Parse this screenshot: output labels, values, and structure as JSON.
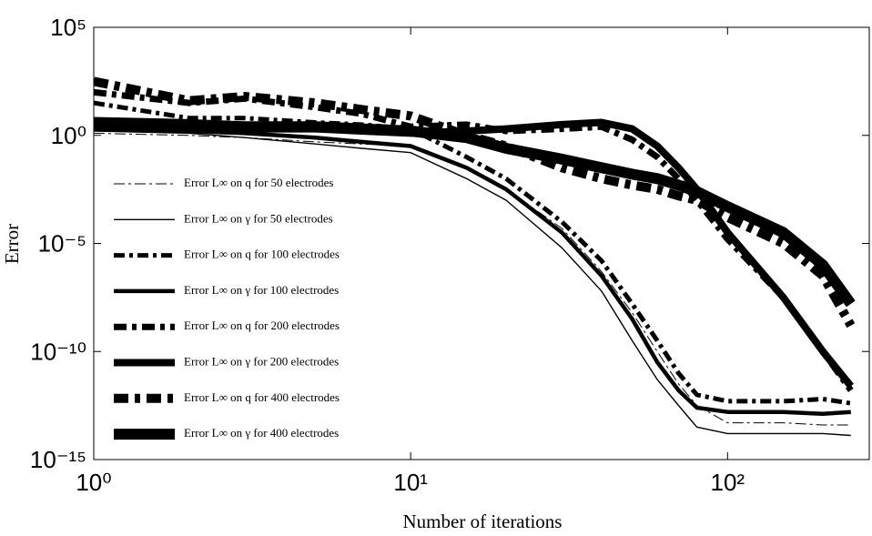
{
  "chart_data": {
    "type": "line",
    "xlabel": "Number of iterations",
    "ylabel": "Error",
    "log_x": true,
    "log_y": true,
    "legend": "left",
    "xlim": [
      1,
      280
    ],
    "xticks": [
      {
        "value": 1,
        "label": "10⁰"
      },
      {
        "value": 10,
        "label": "10¹"
      },
      {
        "value": 100,
        "label": "10²"
      }
    ],
    "ylim": [
      1e-15,
      100000
    ],
    "yticks": [
      {
        "value": 1e-15,
        "label": "10⁻¹⁵"
      },
      {
        "value": 1e-10,
        "label": "10⁻¹⁰"
      },
      {
        "value": 1e-05,
        "label": "10⁻⁵"
      },
      {
        "value": 1,
        "label": "10⁰"
      },
      {
        "value": 100000,
        "label": "10⁵"
      }
    ],
    "x": [
      1,
      2,
      3,
      5,
      7,
      10,
      15,
      20,
      30,
      40,
      50,
      60,
      70,
      80,
      100,
      150,
      200,
      245
    ],
    "series": [
      {
        "name": "Error L∞ on q for 50 electrodes",
        "color": "#000000",
        "line_width": 1,
        "dash": "12 4 3 4",
        "values": [
          1.26,
          1,
          0.79,
          0.5,
          0.4,
          0.32,
          0.032,
          0.0032,
          5e-05,
          5e-07,
          6.3e-09,
          1e-10,
          3.2e-12,
          3.2e-13,
          5e-14,
          5e-14,
          4e-14,
          4e-14
        ]
      },
      {
        "name": "Error L∞ on γ for 50 electrodes",
        "color": "#000000",
        "line_width": 1.4,
        "dash": "none",
        "values": [
          1.58,
          1.26,
          0.79,
          0.4,
          0.25,
          0.16,
          0.01,
          0.001,
          6.3e-06,
          6.3e-08,
          3.2e-10,
          5e-12,
          3.2e-13,
          3.2e-14,
          1.6e-14,
          1.6e-14,
          1.6e-14,
          1.3e-14
        ]
      },
      {
        "name": "Error L∞ on q for 100 electrodes",
        "color": "#000000",
        "line_width": 5,
        "dash": "12 5 4 5",
        "values": [
          31.6,
          6.3,
          6.3,
          4,
          3.16,
          2,
          0.1,
          0.01,
          0.0001,
          1.6e-06,
          1.6e-08,
          3.2e-10,
          1e-11,
          1e-12,
          5e-13,
          5e-13,
          6.3e-13,
          4e-13
        ]
      },
      {
        "name": "Error L∞ on γ for 100 electrodes",
        "color": "#000000",
        "line_width": 4.5,
        "dash": "none",
        "values": [
          2,
          1.58,
          1.26,
          0.79,
          0.5,
          0.32,
          0.032,
          0.0032,
          3.2e-05,
          3.2e-07,
          3.2e-09,
          3.2e-11,
          1.6e-12,
          2.5e-13,
          1.6e-13,
          1.6e-13,
          1.3e-13,
          1.6e-13
        ]
      },
      {
        "name": "Error L∞ on q for 200 electrodes",
        "color": "#000000",
        "line_width": 7,
        "dash": "14 6 5 6",
        "values": [
          100,
          31.6,
          50,
          20,
          10,
          2.5,
          3.16,
          1.58,
          2,
          2.5,
          0.63,
          0.1,
          0.01,
          0.001,
          1.6e-05,
          3.2e-08,
          1e-10,
          1.6e-12
        ]
      },
      {
        "name": "Error L∞ on γ for 200 electrodes",
        "color": "#000000",
        "line_width": 8,
        "dash": "none",
        "values": [
          3.16,
          2.5,
          2,
          2,
          1.58,
          1.26,
          1.58,
          2,
          3.16,
          4,
          2,
          0.32,
          0.032,
          0.0032,
          3.2e-05,
          3.2e-08,
          1e-10,
          2.5e-12
        ]
      },
      {
        "name": "Error L∞ on q for 400 electrodes",
        "color": "#000000",
        "line_width": 10,
        "dash": "16 7 6 7",
        "values": [
          316,
          40,
          63,
          31.6,
          15.8,
          7.9,
          1,
          0.32,
          0.032,
          0.01,
          0.005,
          0.0032,
          0.0016,
          0.001,
          0.00016,
          1e-05,
          3.2e-07,
          1.6e-09
        ]
      },
      {
        "name": "Error L∞ on γ for 400 electrodes",
        "color": "#000000",
        "line_width": 12,
        "dash": "none",
        "values": [
          4,
          3.16,
          2.5,
          2.5,
          2,
          1.58,
          0.79,
          0.25,
          0.079,
          0.032,
          0.016,
          0.01,
          0.005,
          0.0025,
          0.0005,
          3.2e-05,
          1e-06,
          1.6e-08
        ]
      }
    ]
  }
}
